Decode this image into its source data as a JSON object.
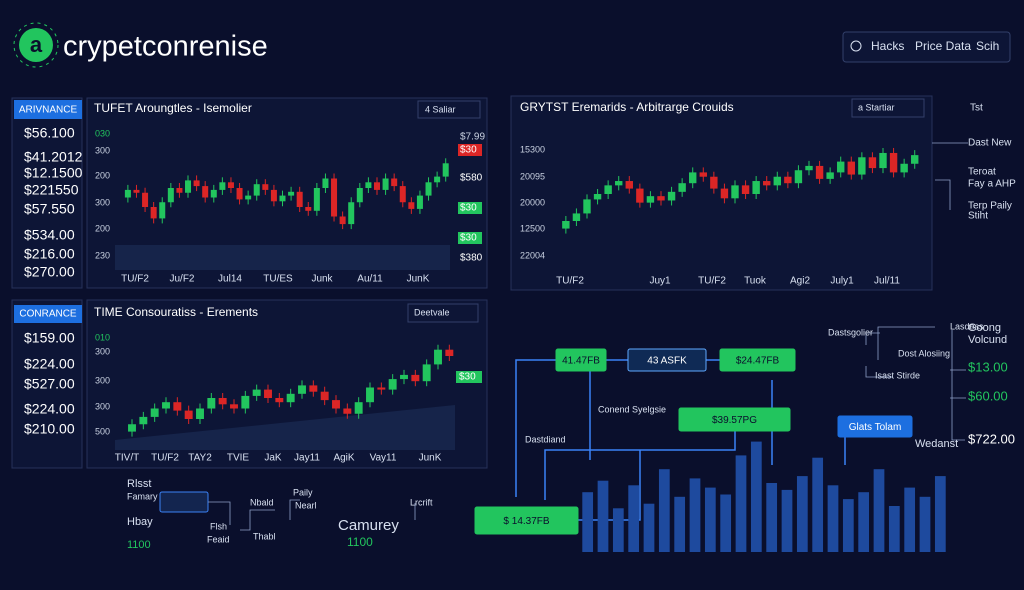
{
  "header": {
    "logo": "a",
    "brand": "crypetconrenise",
    "search": "Hacks",
    "links": [
      "Price Data",
      "Scih"
    ]
  },
  "left_panel_1": {
    "tag": "ARIVNANCE",
    "values": [
      "$56.100",
      "$41.2012",
      "$12.1500",
      "$221550",
      "$57.550",
      "$534.00",
      "$216.00",
      "$270.00"
    ]
  },
  "chart_1": {
    "title": "TUFET Aroungtles - Isemolier",
    "dropdown": "4 Saliar",
    "left_labels": [
      "030",
      "300",
      "200",
      "300",
      "200",
      "230"
    ],
    "right_labels": [
      "$7.99",
      "$30",
      "$580",
      "$30",
      "$30",
      "$380"
    ],
    "x_labels": [
      "TU/F2",
      "Ju/F2",
      "Jul14",
      "TU/ES",
      "Junk",
      "Au/11",
      "JunK"
    ],
    "ylim": [
      0,
      100
    ],
    "values": [
      50,
      58,
      55,
      40,
      28,
      45,
      60,
      55,
      68,
      62,
      50,
      58,
      66,
      60,
      48,
      52,
      64,
      58,
      46,
      52,
      56,
      40,
      36,
      60,
      70,
      30,
      22,
      45,
      60,
      66,
      58,
      70,
      62,
      45,
      38,
      52,
      66,
      72,
      86
    ]
  },
  "chart_2": {
    "title": "GRYTST Eremarids - Arbitrarge Crouids",
    "dropdown": "a Startiar",
    "left_labels": [
      "15300",
      "20095",
      "20000",
      "12500",
      "22004"
    ],
    "x_labels": [
      "TU/F2",
      "Juy1",
      "TU/F2",
      "Tuok",
      "Agi2",
      "July1",
      "Jul/11"
    ],
    "side_notes": [
      "Tst",
      "Dast New",
      "Teroat",
      "Fay a AHP",
      "Terp Paily",
      "Stiht"
    ],
    "ylim": [
      0,
      100
    ],
    "values": [
      18,
      25,
      32,
      45,
      50,
      58,
      62,
      55,
      42,
      48,
      44,
      52,
      60,
      70,
      66,
      55,
      46,
      58,
      50,
      62,
      58,
      66,
      60,
      72,
      76,
      64,
      70,
      80,
      68,
      84,
      74,
      88,
      70,
      78,
      86
    ]
  },
  "left_panel_2": {
    "tag": "CONRANCE",
    "values": [
      "$159.00",
      "$224.00",
      "$527.00",
      "$224.00",
      "$210.00"
    ]
  },
  "chart_3": {
    "title": "TIME Consouratiss - Erements",
    "dropdown": "Deetvale",
    "left_labels": [
      "010",
      "300",
      "300",
      "300",
      "500"
    ],
    "right_labels": [
      "$30"
    ],
    "x_labels": [
      "TIV/T",
      "TU/F2",
      "TAY2",
      "TVIE",
      "JaK",
      "Jay11",
      "AgiK",
      "Vay11",
      "JunK"
    ],
    "ylim": [
      0,
      100
    ],
    "values": [
      8,
      15,
      22,
      30,
      36,
      28,
      20,
      30,
      40,
      34,
      30,
      42,
      48,
      40,
      36,
      44,
      52,
      46,
      38,
      30,
      25,
      36,
      50,
      48,
      58,
      62,
      56,
      72,
      86,
      80
    ]
  },
  "flow": {
    "nodes": [
      "41.47FB",
      "43 ASFK",
      "$24.47FB",
      "$39.57PG",
      "$ 14.37FB",
      "Glats Tolam"
    ],
    "labels": [
      "Dastsgolier",
      "Conend Syelgsie",
      "Dastdiand",
      "Dost Alosiing",
      "Lasdess",
      "Isast Stirde"
    ]
  },
  "right_column": [
    "Goong",
    "Volcund",
    "$13.00",
    "$60.00",
    "$722.00",
    "Wedanst"
  ],
  "bottom_left": [
    "Rlsst",
    "Famary",
    "Hbay",
    "1100",
    "Nbald",
    "Paily",
    "Nearl",
    "Flsh",
    "Feaid",
    "Thabl",
    "Camurey",
    "1100",
    "Lrcrift"
  ],
  "bars": {
    "ylim": [
      0,
      100
    ],
    "values": [
      52,
      62,
      38,
      58,
      42,
      72,
      48,
      64,
      56,
      50,
      84,
      96,
      60,
      54,
      66,
      82,
      58,
      46,
      52,
      72,
      40,
      56,
      48,
      66
    ]
  }
}
